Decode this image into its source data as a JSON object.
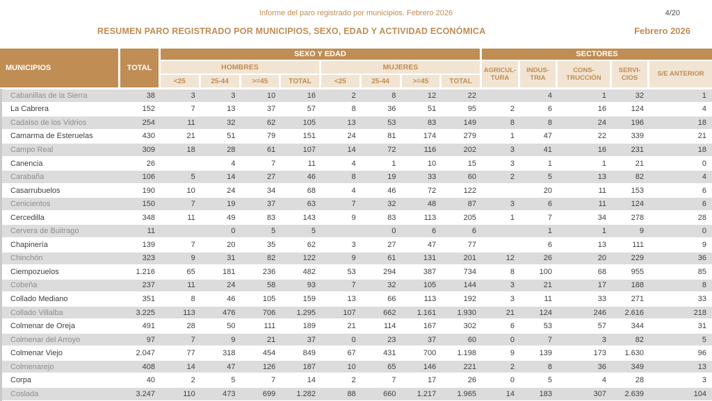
{
  "header": {
    "report_title": "Informe del paro registrado por municipios. Febrero 2026",
    "page_number": "4/20",
    "summary_title": "RESUMEN PARO REGISTRADO POR MUNICIPIOS, SEXO, EDAD Y ACTIVIDAD ECONÓMICA",
    "period": "Febrero 2026"
  },
  "colors": {
    "accent_tan": "#C08D55",
    "subheader_beige": "#F2E4D2",
    "subheader_text": "#BE8C52",
    "row_alt_gray": "#DCDCDC"
  },
  "table": {
    "headers": {
      "municipios": "MUNICIPIOS",
      "total": "TOTAL",
      "sexo_edad": "SEXO Y EDAD",
      "sectores": "SECTORES",
      "hombres": "HOMBRES",
      "mujeres": "MUJERES",
      "age_cols": [
        "<25",
        "25-44",
        ">=45",
        "TOTAL"
      ],
      "sector_cols": [
        [
          "AGRICUL-",
          "TURA"
        ],
        [
          "INDUS-",
          "TRIA"
        ],
        [
          "CONS-",
          "TRUCCIÓN"
        ],
        [
          "SERVI-",
          "CIOS"
        ],
        [
          "S/E ANTERIOR"
        ]
      ]
    },
    "rows": [
      {
        "municipio": "Cabanillas de la Sierra",
        "total": "38",
        "values": [
          "3",
          "3",
          "10",
          "16",
          "2",
          "8",
          "12",
          "22",
          "",
          "4",
          "1",
          "32",
          "1"
        ]
      },
      {
        "municipio": "La Cabrera",
        "total": "152",
        "values": [
          "7",
          "13",
          "37",
          "57",
          "8",
          "36",
          "51",
          "95",
          "2",
          "6",
          "16",
          "124",
          "4"
        ]
      },
      {
        "municipio": "Cadalso de los Vidrios",
        "total": "254",
        "values": [
          "11",
          "32",
          "62",
          "105",
          "13",
          "53",
          "83",
          "149",
          "8",
          "8",
          "24",
          "196",
          "18"
        ]
      },
      {
        "municipio": "Camarma de Esteruelas",
        "total": "430",
        "values": [
          "21",
          "51",
          "79",
          "151",
          "24",
          "81",
          "174",
          "279",
          "1",
          "47",
          "22",
          "339",
          "21"
        ]
      },
      {
        "municipio": "Campo Real",
        "total": "309",
        "values": [
          "18",
          "28",
          "61",
          "107",
          "14",
          "72",
          "116",
          "202",
          "3",
          "41",
          "16",
          "231",
          "18"
        ]
      },
      {
        "municipio": "Canencia",
        "total": "26",
        "values": [
          "",
          "4",
          "7",
          "11",
          "4",
          "1",
          "10",
          "15",
          "3",
          "1",
          "1",
          "21",
          "0"
        ]
      },
      {
        "municipio": "Carabaña",
        "total": "106",
        "values": [
          "5",
          "14",
          "27",
          "46",
          "8",
          "19",
          "33",
          "60",
          "2",
          "5",
          "13",
          "82",
          "4"
        ]
      },
      {
        "municipio": "Casarrubuelos",
        "total": "190",
        "values": [
          "10",
          "24",
          "34",
          "68",
          "4",
          "46",
          "72",
          "122",
          "",
          "20",
          "11",
          "153",
          "6"
        ]
      },
      {
        "municipio": "Cenicientos",
        "total": "150",
        "values": [
          "7",
          "19",
          "37",
          "63",
          "7",
          "32",
          "48",
          "87",
          "3",
          "6",
          "11",
          "124",
          "6"
        ]
      },
      {
        "municipio": "Cercedilla",
        "total": "348",
        "values": [
          "11",
          "49",
          "83",
          "143",
          "9",
          "83",
          "113",
          "205",
          "1",
          "7",
          "34",
          "278",
          "28"
        ]
      },
      {
        "municipio": "Cervera de Buitrago",
        "total": "11",
        "values": [
          "",
          "0",
          "5",
          "5",
          "",
          "0",
          "6",
          "6",
          "",
          "1",
          "1",
          "9",
          "0"
        ]
      },
      {
        "municipio": "Chapinería",
        "total": "139",
        "values": [
          "7",
          "20",
          "35",
          "62",
          "3",
          "27",
          "47",
          "77",
          "",
          "6",
          "13",
          "111",
          "9"
        ]
      },
      {
        "municipio": "Chinchón",
        "total": "323",
        "values": [
          "9",
          "31",
          "82",
          "122",
          "9",
          "61",
          "131",
          "201",
          "12",
          "26",
          "20",
          "229",
          "36"
        ]
      },
      {
        "municipio": "Ciempozuelos",
        "total": "1.216",
        "values": [
          "65",
          "181",
          "236",
          "482",
          "53",
          "294",
          "387",
          "734",
          "8",
          "100",
          "68",
          "955",
          "85"
        ]
      },
      {
        "municipio": "Cobeña",
        "total": "237",
        "values": [
          "11",
          "24",
          "58",
          "93",
          "7",
          "32",
          "105",
          "144",
          "3",
          "21",
          "17",
          "188",
          "8"
        ]
      },
      {
        "municipio": "Collado Mediano",
        "total": "351",
        "values": [
          "8",
          "46",
          "105",
          "159",
          "13",
          "66",
          "113",
          "192",
          "3",
          "11",
          "33",
          "271",
          "33"
        ]
      },
      {
        "municipio": "Collado Villalba",
        "total": "3.225",
        "values": [
          "113",
          "476",
          "706",
          "1.295",
          "107",
          "662",
          "1.161",
          "1.930",
          "21",
          "124",
          "246",
          "2.616",
          "218"
        ]
      },
      {
        "municipio": "Colmenar de Oreja",
        "total": "491",
        "values": [
          "28",
          "50",
          "111",
          "189",
          "21",
          "114",
          "167",
          "302",
          "6",
          "53",
          "57",
          "344",
          "31"
        ]
      },
      {
        "municipio": "Colmenar del Arroyo",
        "total": "97",
        "values": [
          "7",
          "9",
          "21",
          "37",
          "0",
          "23",
          "37",
          "60",
          "0",
          "7",
          "3",
          "82",
          "5"
        ]
      },
      {
        "municipio": "Colmenar Viejo",
        "total": "2.047",
        "values": [
          "77",
          "318",
          "454",
          "849",
          "67",
          "431",
          "700",
          "1.198",
          "9",
          "139",
          "173",
          "1.630",
          "96"
        ]
      },
      {
        "municipio": "Colmenarejo",
        "total": "408",
        "values": [
          "14",
          "47",
          "126",
          "187",
          "10",
          "65",
          "146",
          "221",
          "2",
          "8",
          "36",
          "349",
          "13"
        ]
      },
      {
        "municipio": "Corpa",
        "total": "40",
        "values": [
          "2",
          "5",
          "7",
          "14",
          "2",
          "7",
          "17",
          "26",
          "0",
          "5",
          "4",
          "28",
          "3"
        ]
      },
      {
        "municipio": "Coslada",
        "total": "3.247",
        "values": [
          "110",
          "473",
          "699",
          "1.282",
          "88",
          "660",
          "1.217",
          "1.965",
          "14",
          "183",
          "307",
          "2.639",
          "104"
        ]
      }
    ]
  }
}
